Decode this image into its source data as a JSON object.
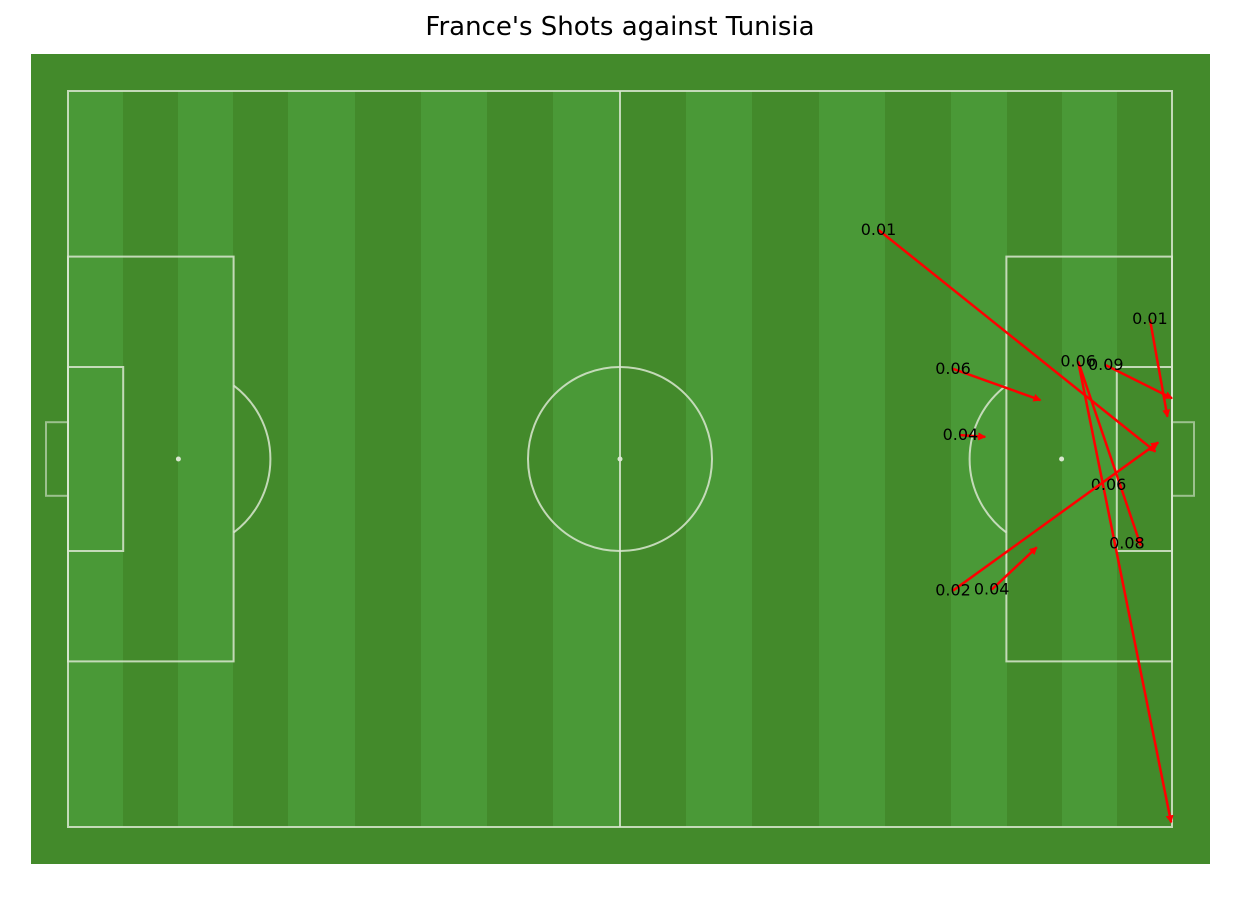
{
  "chart_data": {
    "type": "scatter",
    "subtype": "pitch-shot-map",
    "title": "France's Shots against Tunisia",
    "xlabel": "",
    "ylabel": "",
    "xlim": [
      0,
      120
    ],
    "ylim": [
      80,
      0
    ],
    "grid": false,
    "axes_visible": false,
    "arrow_color": "#ff0000",
    "pitch_color": "#438a2b",
    "stripe_color": "#4a9937",
    "line_color": "#d9e6d0",
    "shots": [
      {
        "x": 88.1,
        "y": 15.1,
        "end_x": 118.2,
        "end_y": 39.2,
        "xg": "0.01"
      },
      {
        "x": 117.6,
        "y": 24.8,
        "end_x": 119.5,
        "end_y": 35.4,
        "xg": "0.01"
      },
      {
        "x": 96.2,
        "y": 30.2,
        "end_x": 105.7,
        "end_y": 33.6,
        "xg": "0.06"
      },
      {
        "x": 109.8,
        "y": 29.4,
        "end_x": 119.9,
        "end_y": 79.5
      },
      {
        "x": 109.8,
        "y": 29.4,
        "end_x": 116.6,
        "end_y": 49.4,
        "xg": "0.06"
      },
      {
        "x": 112.8,
        "y": 29.8,
        "end_x": 120.0,
        "end_y": 33.4,
        "xg": "0.09"
      },
      {
        "x": 97.0,
        "y": 37.4,
        "end_x": 99.7,
        "end_y": 37.6,
        "xg": "0.04"
      },
      {
        "x": 113.1,
        "y": 42.8,
        "xg": "0.06"
      },
      {
        "x": 115.1,
        "y": 49.2,
        "xg": "0.08"
      },
      {
        "x": 96.2,
        "y": 54.3,
        "end_x": 118.5,
        "end_y": 38.2,
        "xg": "0.02"
      },
      {
        "x": 100.4,
        "y": 54.2,
        "end_x": 105.3,
        "end_y": 49.6,
        "xg": "0.04"
      }
    ]
  }
}
